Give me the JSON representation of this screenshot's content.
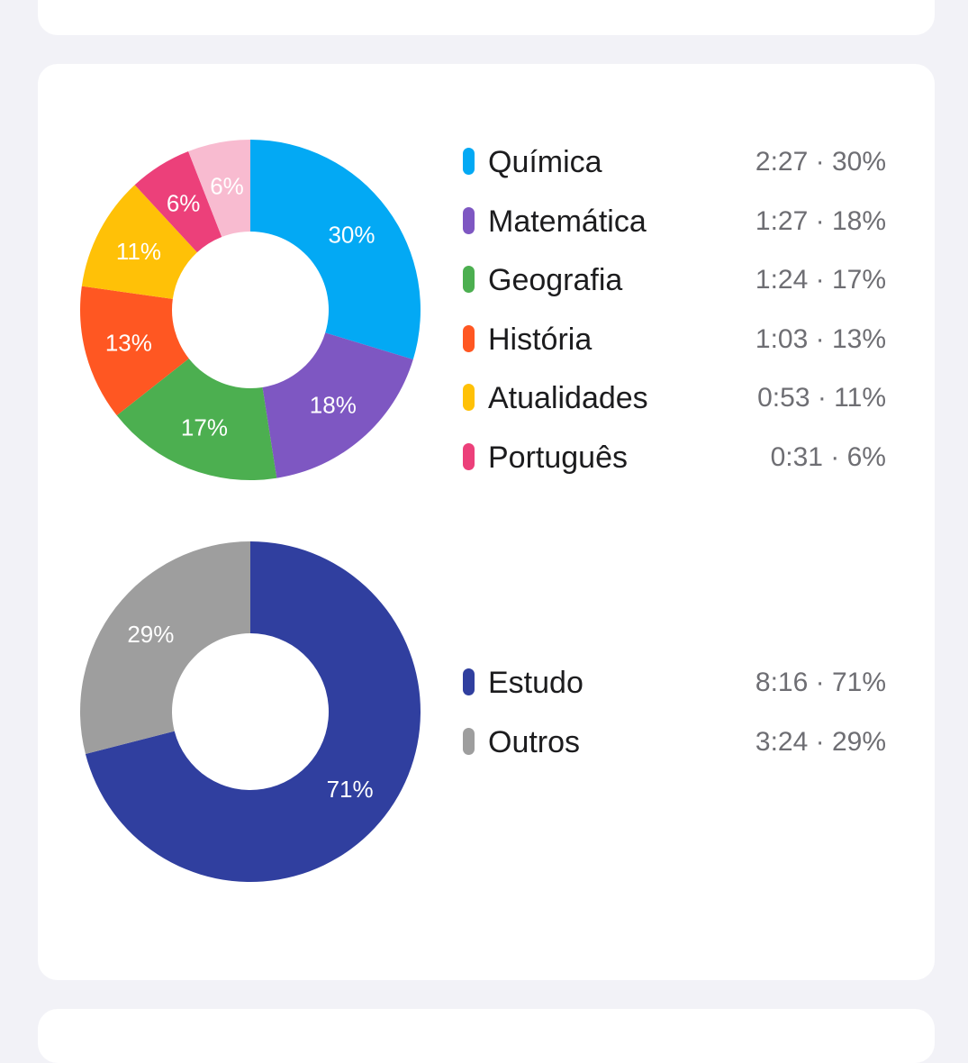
{
  "colors": {
    "background": "#f2f2f7",
    "card": "#ffffff",
    "text_primary": "#1c1c1e",
    "text_secondary": "#6e6e73"
  },
  "chart_data": [
    {
      "type": "pie",
      "donut": true,
      "slices": [
        {
          "label": "Química",
          "time": "2:27",
          "percent": 30,
          "percent_label": "30%",
          "value_text": "2:27 · 30%",
          "color": "#03a9f4"
        },
        {
          "label": "Matemática",
          "time": "1:27",
          "percent": 18,
          "percent_label": "18%",
          "value_text": "1:27 · 18%",
          "color": "#7e57c2"
        },
        {
          "label": "Geografia",
          "time": "1:24",
          "percent": 17,
          "percent_label": "17%",
          "value_text": "1:24 · 17%",
          "color": "#4caf50"
        },
        {
          "label": "História",
          "time": "1:03",
          "percent": 13,
          "percent_label": "13%",
          "value_text": "1:03 · 13%",
          "color": "#ff5722"
        },
        {
          "label": "Atualidades",
          "time": "0:53",
          "percent": 11,
          "percent_label": "11%",
          "value_text": "0:53 · 11%",
          "color": "#ffc107"
        },
        {
          "label": "Português",
          "time": "0:31",
          "percent": 6,
          "percent_label": "6%",
          "value_text": "0:31 · 6%",
          "color": "#ec407a"
        },
        {
          "label": "",
          "time": "",
          "percent": 6,
          "percent_label": "6%",
          "value_text": "",
          "color": "#f8bbd0"
        }
      ],
      "legend": "right"
    },
    {
      "type": "pie",
      "donut": true,
      "slices": [
        {
          "label": "Estudo",
          "time": "8:16",
          "percent": 71,
          "percent_label": "71%",
          "value_text": "8:16 · 71%",
          "color": "#303f9f"
        },
        {
          "label": "Outros",
          "time": "3:24",
          "percent": 29,
          "percent_label": "29%",
          "value_text": "3:24 · 29%",
          "color": "#9e9e9e"
        }
      ],
      "legend": "right"
    }
  ]
}
